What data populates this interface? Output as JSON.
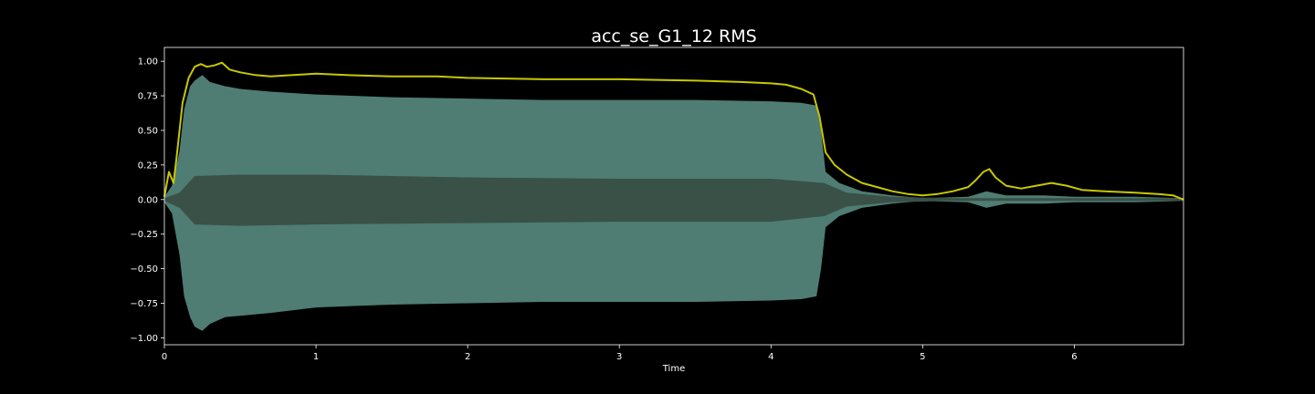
{
  "chart_data": {
    "type": "area",
    "title": "acc_se_G1_12 RMS",
    "xlabel": "Time",
    "ylabel": "",
    "xlim": [
      0,
      6.72
    ],
    "ylim": [
      -1.05,
      1.1
    ],
    "x_ticks": [
      "0",
      "1",
      "2",
      "3",
      "4",
      "5",
      "6"
    ],
    "y_ticks": [
      "1.00",
      "0.75",
      "0.50",
      "0.25",
      "0.00",
      "−0.25",
      "−0.50",
      "−0.75",
      "−1.00"
    ],
    "grid": false,
    "legend": "none",
    "series": [
      {
        "kind": "waveform-envelope",
        "color": "#4f7c73",
        "points": [
          [
            0.0,
            0.02,
            -0.02
          ],
          [
            0.05,
            0.1,
            -0.1
          ],
          [
            0.1,
            0.35,
            -0.4
          ],
          [
            0.13,
            0.65,
            -0.7
          ],
          [
            0.17,
            0.82,
            -0.85
          ],
          [
            0.2,
            0.86,
            -0.92
          ],
          [
            0.25,
            0.9,
            -0.95
          ],
          [
            0.3,
            0.85,
            -0.9
          ],
          [
            0.4,
            0.82,
            -0.85
          ],
          [
            0.5,
            0.8,
            -0.84
          ],
          [
            0.7,
            0.78,
            -0.82
          ],
          [
            1.0,
            0.76,
            -0.78
          ],
          [
            1.5,
            0.74,
            -0.76
          ],
          [
            2.0,
            0.73,
            -0.75
          ],
          [
            2.5,
            0.72,
            -0.74
          ],
          [
            3.0,
            0.72,
            -0.74
          ],
          [
            3.5,
            0.72,
            -0.74
          ],
          [
            4.0,
            0.71,
            -0.73
          ],
          [
            4.2,
            0.7,
            -0.72
          ],
          [
            4.3,
            0.68,
            -0.7
          ],
          [
            4.33,
            0.5,
            -0.5
          ],
          [
            4.36,
            0.2,
            -0.2
          ],
          [
            4.45,
            0.12,
            -0.12
          ],
          [
            4.6,
            0.06,
            -0.06
          ],
          [
            4.8,
            0.03,
            -0.03
          ],
          [
            5.0,
            0.01,
            -0.01
          ],
          [
            5.3,
            0.02,
            -0.02
          ],
          [
            5.42,
            0.06,
            -0.06
          ],
          [
            5.55,
            0.03,
            -0.03
          ],
          [
            5.8,
            0.03,
            -0.03
          ],
          [
            6.0,
            0.02,
            -0.02
          ],
          [
            6.4,
            0.02,
            -0.02
          ],
          [
            6.72,
            0.01,
            -0.01
          ]
        ]
      },
      {
        "kind": "waveform-core",
        "color": "#3a5148",
        "points": [
          [
            0.0,
            0.01,
            -0.01
          ],
          [
            0.1,
            0.05,
            -0.06
          ],
          [
            0.2,
            0.17,
            -0.18
          ],
          [
            0.5,
            0.18,
            -0.19
          ],
          [
            1.0,
            0.18,
            -0.18
          ],
          [
            2.0,
            0.16,
            -0.17
          ],
          [
            3.0,
            0.15,
            -0.16
          ],
          [
            4.0,
            0.15,
            -0.16
          ],
          [
            4.35,
            0.12,
            -0.12
          ],
          [
            4.5,
            0.05,
            -0.05
          ],
          [
            4.8,
            0.02,
            -0.02
          ],
          [
            5.2,
            0.01,
            -0.01
          ],
          [
            6.72,
            0.01,
            -0.01
          ]
        ]
      },
      {
        "kind": "rms-line",
        "color": "#c8c800",
        "points": [
          [
            0.0,
            0.02
          ],
          [
            0.03,
            0.2
          ],
          [
            0.06,
            0.12
          ],
          [
            0.08,
            0.3
          ],
          [
            0.12,
            0.7
          ],
          [
            0.16,
            0.88
          ],
          [
            0.2,
            0.96
          ],
          [
            0.24,
            0.98
          ],
          [
            0.28,
            0.96
          ],
          [
            0.33,
            0.97
          ],
          [
            0.38,
            0.99
          ],
          [
            0.43,
            0.94
          ],
          [
            0.5,
            0.92
          ],
          [
            0.6,
            0.9
          ],
          [
            0.7,
            0.89
          ],
          [
            0.85,
            0.9
          ],
          [
            1.0,
            0.91
          ],
          [
            1.2,
            0.9
          ],
          [
            1.5,
            0.89
          ],
          [
            1.8,
            0.89
          ],
          [
            2.0,
            0.88
          ],
          [
            2.5,
            0.87
          ],
          [
            3.0,
            0.87
          ],
          [
            3.5,
            0.86
          ],
          [
            3.8,
            0.85
          ],
          [
            4.0,
            0.84
          ],
          [
            4.1,
            0.83
          ],
          [
            4.2,
            0.8
          ],
          [
            4.28,
            0.76
          ],
          [
            4.32,
            0.6
          ],
          [
            4.36,
            0.34
          ],
          [
            4.42,
            0.25
          ],
          [
            4.5,
            0.18
          ],
          [
            4.6,
            0.12
          ],
          [
            4.7,
            0.09
          ],
          [
            4.8,
            0.06
          ],
          [
            4.9,
            0.04
          ],
          [
            5.0,
            0.03
          ],
          [
            5.1,
            0.04
          ],
          [
            5.2,
            0.06
          ],
          [
            5.3,
            0.09
          ],
          [
            5.35,
            0.14
          ],
          [
            5.4,
            0.2
          ],
          [
            5.44,
            0.22
          ],
          [
            5.48,
            0.16
          ],
          [
            5.55,
            0.1
          ],
          [
            5.65,
            0.08
          ],
          [
            5.75,
            0.1
          ],
          [
            5.85,
            0.12
          ],
          [
            5.95,
            0.1
          ],
          [
            6.05,
            0.07
          ],
          [
            6.2,
            0.06
          ],
          [
            6.4,
            0.05
          ],
          [
            6.55,
            0.04
          ],
          [
            6.65,
            0.03
          ],
          [
            6.72,
            0.0
          ]
        ]
      }
    ]
  }
}
